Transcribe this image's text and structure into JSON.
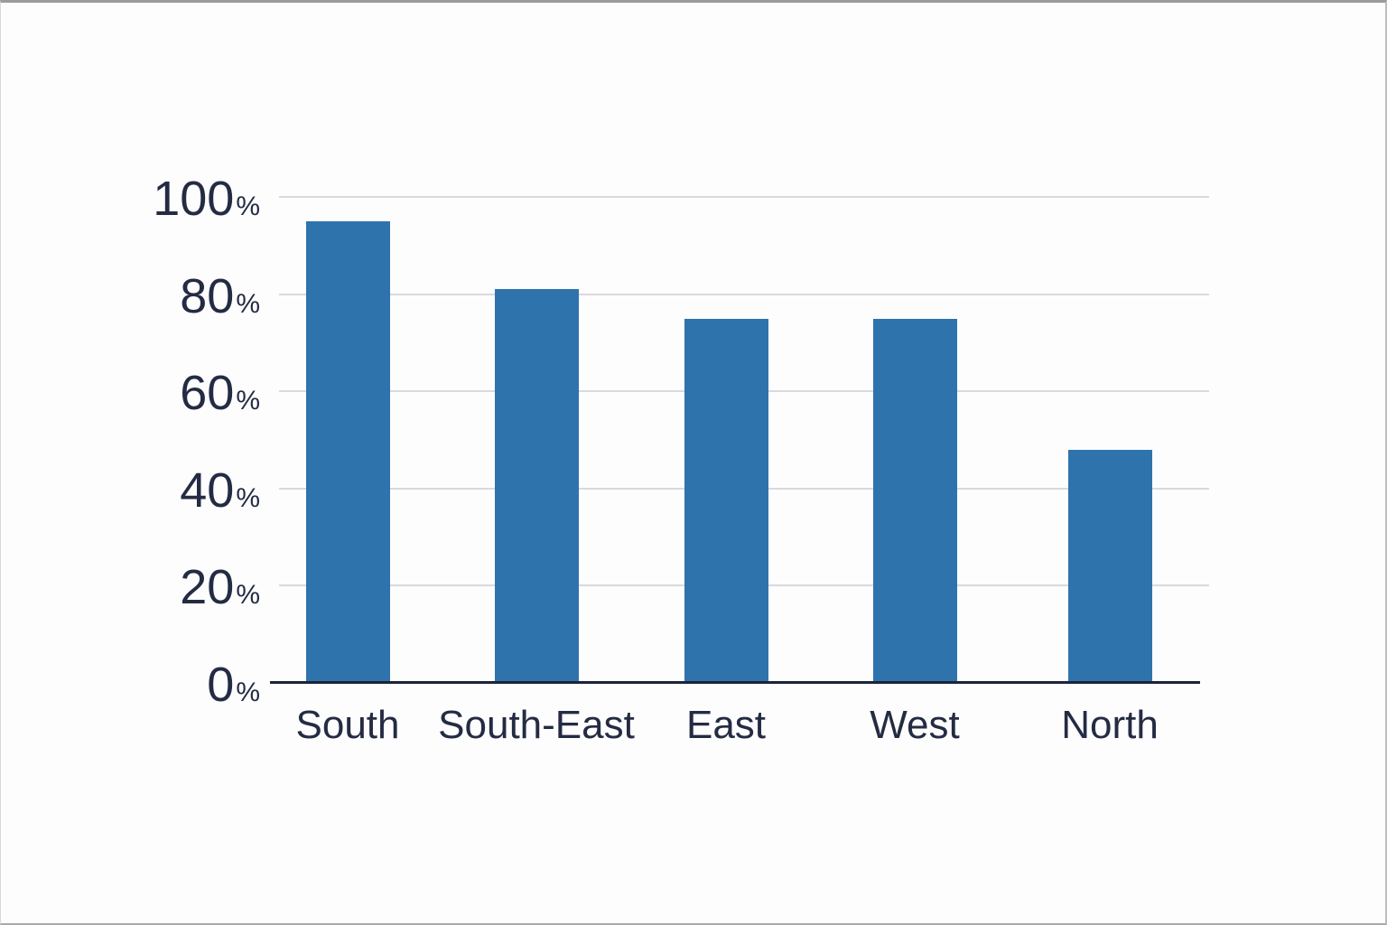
{
  "chart_data": {
    "type": "bar",
    "title": "",
    "xlabel": "",
    "ylabel": "",
    "categories": [
      "South",
      "South-East",
      "East",
      "West",
      "North"
    ],
    "values": [
      95,
      81,
      75,
      75,
      48
    ],
    "unit": "%",
    "ylim": [
      0,
      100
    ],
    "yticks": [
      0,
      20,
      40,
      60,
      80,
      100
    ],
    "grid": true,
    "legend": "none",
    "colors": {
      "bar": "#2f73ad",
      "axis_line": "#1d2338",
      "gridline": "#d9dade",
      "label_text": "#242b43",
      "background": "#fdfdfe"
    }
  }
}
